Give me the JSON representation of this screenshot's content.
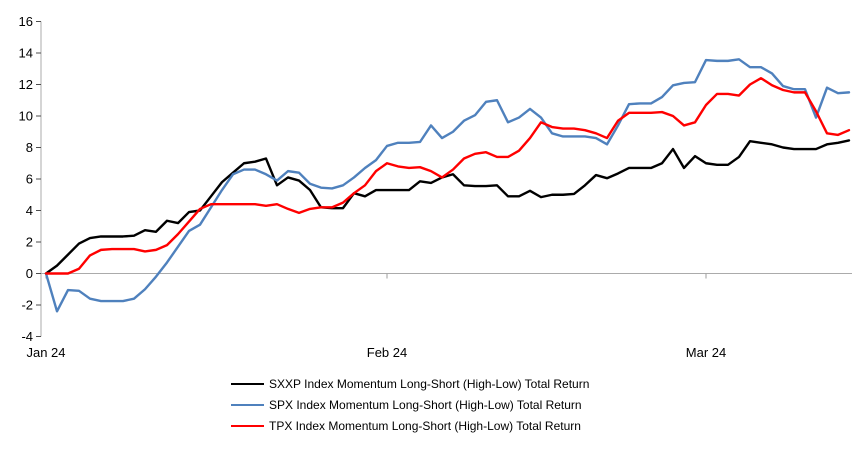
{
  "chart_data": {
    "type": "line",
    "title": "",
    "ylim": [
      -4,
      16
    ],
    "y_ticks": [
      16,
      14,
      12,
      10,
      8,
      6,
      4,
      2,
      0,
      -2,
      -4
    ],
    "x_ticks": [
      {
        "day": 0,
        "label": "Jan 24"
      },
      {
        "day": 31,
        "label": "Feb 24"
      },
      {
        "day": 60,
        "label": "Mar 24"
      }
    ],
    "grid": "zero-line-only",
    "legend_position": "bottom",
    "axis_line_color": "#ababab",
    "y_tick_color": "#4d4d4d",
    "x_tick_color": "#9d9d9d",
    "label_color": "#000000",
    "series": [
      {
        "id": "sxxp",
        "name": "SXXP Index Momentum Long-Short (High-Low) Total Return",
        "color": "#000000",
        "values": [
          0,
          0.5,
          1.2,
          1.9,
          2.25,
          2.35,
          2.35,
          2.35,
          2.4,
          2.75,
          2.65,
          3.35,
          3.2,
          3.9,
          4.0,
          4.9,
          5.8,
          6.4,
          7.0,
          7.1,
          7.3,
          5.6,
          6.1,
          5.9,
          5.3,
          4.2,
          4.15,
          4.15,
          5.1,
          4.9,
          5.3,
          5.3,
          5.3,
          5.3,
          5.85,
          5.75,
          6.1,
          6.3,
          5.6,
          5.55,
          5.55,
          5.6,
          4.9,
          4.9,
          5.25,
          4.85,
          5.0,
          5.0,
          5.05,
          5.6,
          6.25,
          6.05,
          6.35,
          6.7,
          6.7,
          6.7,
          7.0,
          7.9,
          6.7,
          7.45,
          7.0,
          6.9,
          6.9,
          7.4,
          8.4,
          8.3,
          8.2,
          8.0,
          7.9,
          7.9,
          7.9,
          8.2,
          8.3,
          8.45
        ]
      },
      {
        "id": "spx",
        "name": "SPX Index Momentum Long-Short (High-Low) Total Return",
        "color": "#4f81bd",
        "values": [
          0,
          -2.4,
          -1.05,
          -1.1,
          -1.6,
          -1.75,
          -1.75,
          -1.75,
          -1.6,
          -1.0,
          -0.2,
          0.7,
          1.7,
          2.7,
          3.1,
          4.2,
          5.3,
          6.3,
          6.6,
          6.6,
          6.3,
          5.9,
          6.5,
          6.4,
          5.7,
          5.45,
          5.4,
          5.6,
          6.1,
          6.7,
          7.2,
          8.1,
          8.3,
          8.3,
          8.35,
          9.4,
          8.6,
          9.0,
          9.7,
          10.05,
          10.9,
          11.0,
          9.6,
          9.9,
          10.45,
          9.9,
          8.9,
          8.7,
          8.7,
          8.7,
          8.6,
          8.2,
          9.4,
          10.75,
          10.8,
          10.8,
          11.2,
          11.95,
          12.1,
          12.15,
          13.55,
          13.5,
          13.5,
          13.6,
          13.1,
          13.1,
          12.7,
          11.9,
          11.7,
          11.7,
          9.9,
          11.8,
          11.45,
          11.5
        ]
      },
      {
        "id": "tpx",
        "name": "TPX Index Momentum Long-Short (High-Low) Total Return",
        "color": "#ff0000",
        "values": [
          0,
          0,
          0,
          0.3,
          1.15,
          1.5,
          1.55,
          1.55,
          1.55,
          1.4,
          1.5,
          1.8,
          2.5,
          3.3,
          4.1,
          4.4,
          4.4,
          4.4,
          4.4,
          4.4,
          4.3,
          4.4,
          4.1,
          3.85,
          4.1,
          4.2,
          4.2,
          4.5,
          5.1,
          5.6,
          6.5,
          7.0,
          6.8,
          6.7,
          6.75,
          6.5,
          6.1,
          6.6,
          7.3,
          7.6,
          7.7,
          7.4,
          7.4,
          7.8,
          8.6,
          9.6,
          9.3,
          9.2,
          9.2,
          9.1,
          8.9,
          8.6,
          9.7,
          10.2,
          10.2,
          10.2,
          10.25,
          10.0,
          9.4,
          9.6,
          10.7,
          11.4,
          11.4,
          11.3,
          12.0,
          12.4,
          11.95,
          11.65,
          11.5,
          11.5,
          10.3,
          8.9,
          8.8,
          9.1
        ]
      }
    ]
  }
}
